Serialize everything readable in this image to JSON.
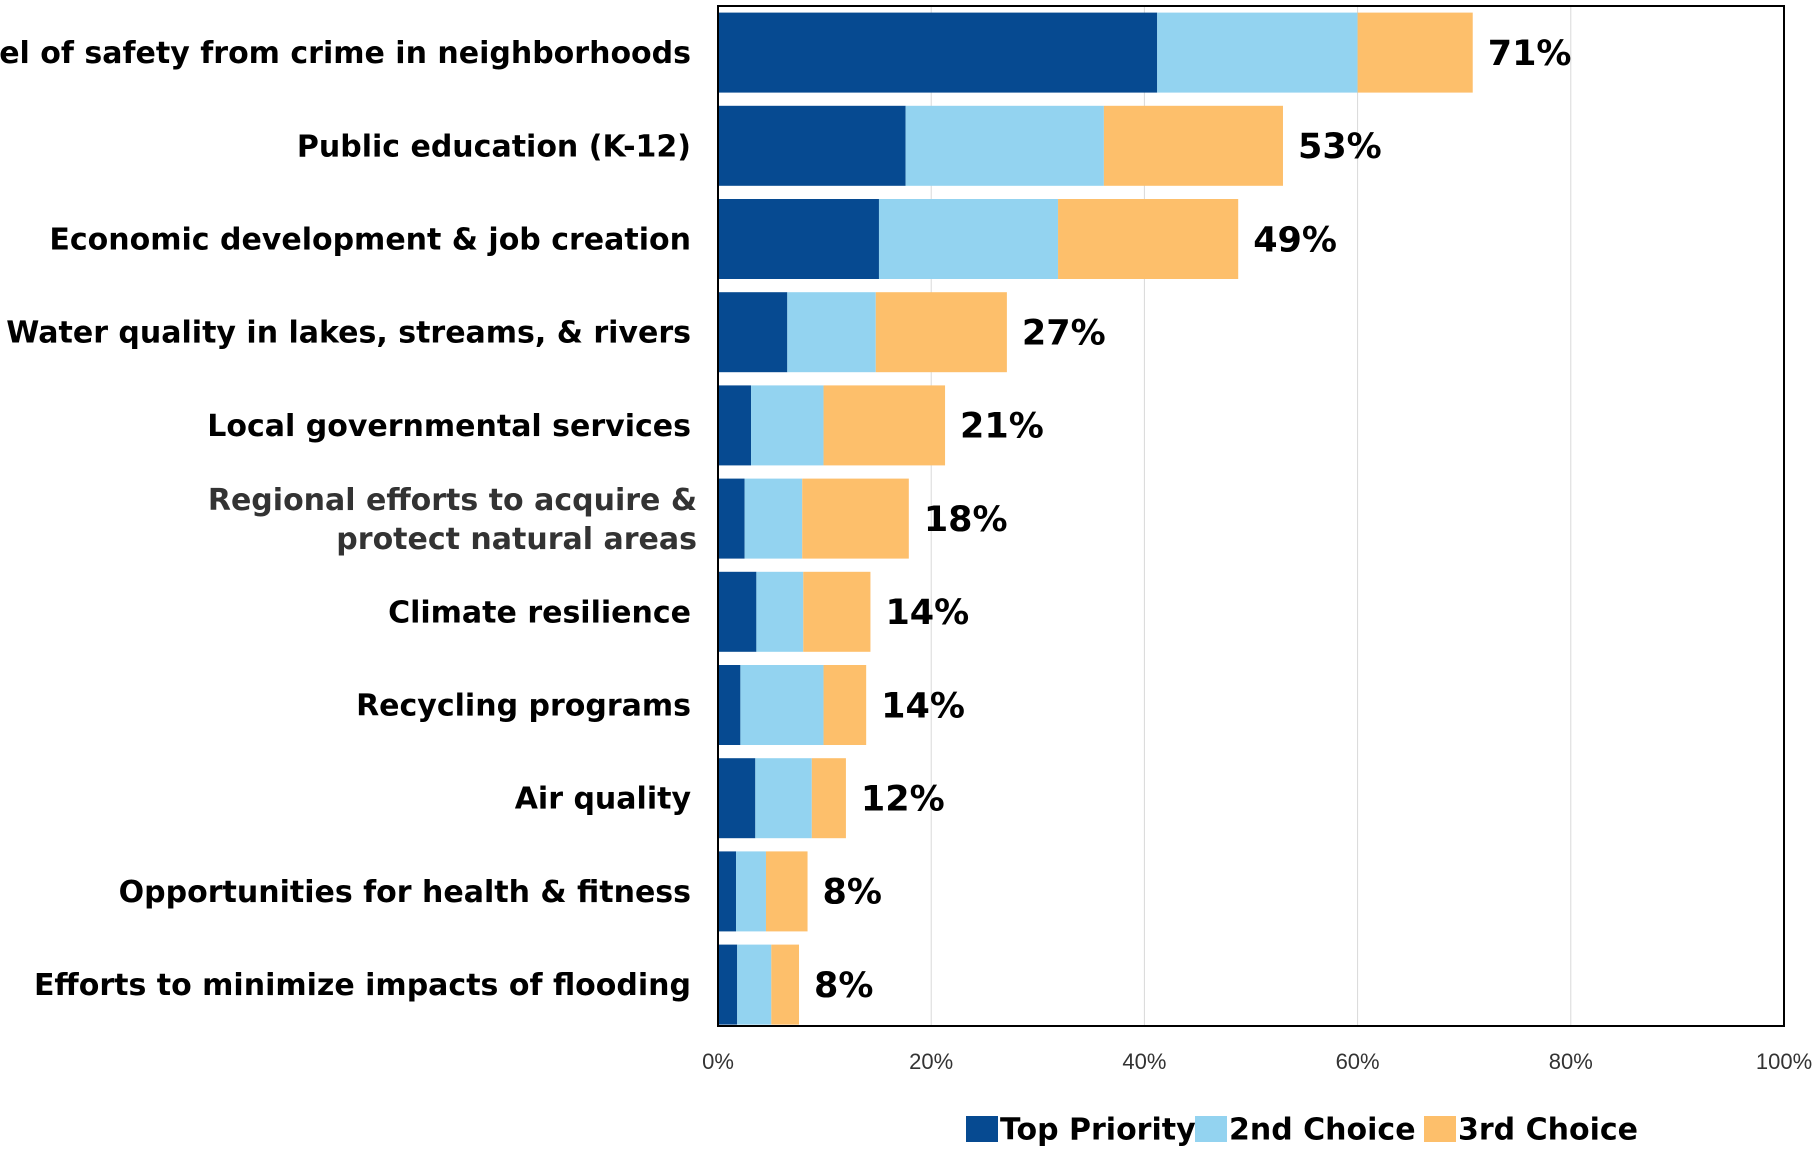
{
  "chart_data": {
    "type": "bar",
    "orientation": "horizontal",
    "stacked": true,
    "title": "",
    "xlabel": "",
    "ylabel": "",
    "xlim": [
      0,
      100
    ],
    "x_ticks": [
      "0%",
      "20%",
      "40%",
      "60%",
      "80%",
      "100%"
    ],
    "grid": true,
    "legend_position": "bottom",
    "categories": [
      "Level of safety from crime in neighborhoods",
      "Public education (K-12)",
      "Economic development & job creation",
      "Water quality in lakes, streams, & rivers",
      "Local governmental services",
      "Regional efforts to acquire & protect natural areas",
      "Climate resilience",
      "Recycling programs",
      "Air quality",
      "Opportunities for health & fitness",
      "Efforts to minimize impacts of flooding"
    ],
    "series": [
      {
        "name": "Top Priority",
        "color": "#064A91",
        "values": [
          41.2,
          17.6,
          15.1,
          6.5,
          3.1,
          2.5,
          3.6,
          2.1,
          3.5,
          1.7,
          1.8
        ]
      },
      {
        "name": "2nd Choice",
        "color": "#93D3F0",
        "values": [
          18.8,
          18.6,
          16.8,
          8.3,
          6.8,
          5.4,
          4.4,
          7.8,
          5.3,
          2.8,
          3.2
        ]
      },
      {
        "name": "3rd Choice",
        "color": "#FDBF6B",
        "values": [
          10.8,
          16.8,
          16.9,
          12.3,
          11.4,
          10.0,
          6.3,
          4.0,
          3.2,
          3.9,
          2.6
        ]
      }
    ],
    "totals": [
      "71%",
      "53%",
      "49%",
      "27%",
      "21%",
      "18%",
      "14%",
      "14%",
      "12%",
      "8%",
      "8%"
    ]
  }
}
